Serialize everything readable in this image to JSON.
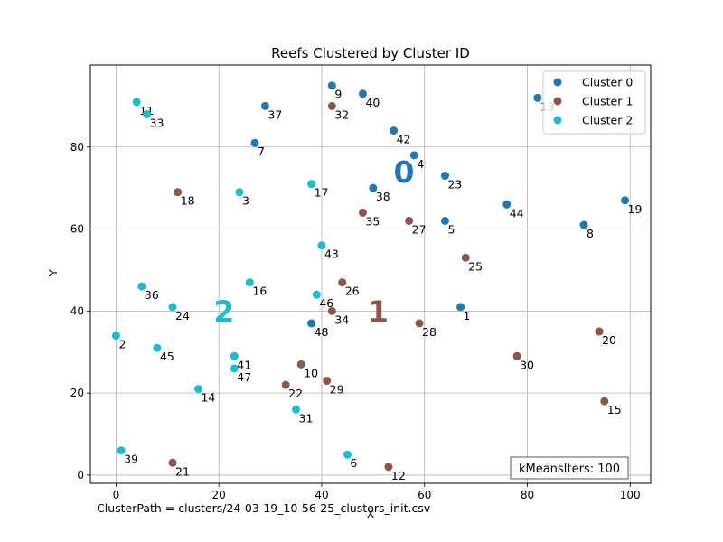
{
  "chart_data": {
    "type": "scatter",
    "title": "Reefs Clustered by Cluster ID",
    "xlabel": "X",
    "ylabel": "Y",
    "xlim": [
      -5,
      104
    ],
    "ylim": [
      -2,
      100
    ],
    "xticks": [
      0,
      20,
      40,
      60,
      80,
      100
    ],
    "yticks": [
      0,
      20,
      40,
      60,
      80
    ],
    "grid": true,
    "legend_position": "top-right",
    "series": [
      {
        "name": "Cluster 0",
        "color": "#1f77b4",
        "centroid_label": "0",
        "centroid": [
          56,
          74
        ],
        "points": [
          {
            "id": "9",
            "x": 42,
            "y": 95
          },
          {
            "id": "40",
            "x": 48,
            "y": 93
          },
          {
            "id": "37",
            "x": 29,
            "y": 90
          },
          {
            "id": "42",
            "x": 54,
            "y": 84
          },
          {
            "id": "7",
            "x": 27,
            "y": 81
          },
          {
            "id": "4",
            "x": 58,
            "y": 78
          },
          {
            "id": "23",
            "x": 64,
            "y": 73
          },
          {
            "id": "38",
            "x": 50,
            "y": 70
          },
          {
            "id": "44",
            "x": 76,
            "y": 66
          },
          {
            "id": "19",
            "x": 99,
            "y": 67
          },
          {
            "id": "5",
            "x": 64,
            "y": 62
          },
          {
            "id": "8",
            "x": 91,
            "y": 61
          },
          {
            "id": "13",
            "x": 82,
            "y": 92
          },
          {
            "id": "1",
            "x": 67,
            "y": 41
          },
          {
            "id": "48",
            "x": 38,
            "y": 37
          }
        ]
      },
      {
        "name": "Cluster 1",
        "color": "#8c564b",
        "centroid_label": "1",
        "centroid": [
          51,
          40
        ],
        "points": [
          {
            "id": "32",
            "x": 42,
            "y": 90
          },
          {
            "id": "18",
            "x": 12,
            "y": 69
          },
          {
            "id": "35",
            "x": 48,
            "y": 64
          },
          {
            "id": "27",
            "x": 57,
            "y": 62
          },
          {
            "id": "25",
            "x": 68,
            "y": 53
          },
          {
            "id": "26",
            "x": 44,
            "y": 47
          },
          {
            "id": "34",
            "x": 42,
            "y": 40
          },
          {
            "id": "28",
            "x": 59,
            "y": 37
          },
          {
            "id": "20",
            "x": 94,
            "y": 35
          },
          {
            "id": "30",
            "x": 78,
            "y": 29
          },
          {
            "id": "10",
            "x": 36,
            "y": 27
          },
          {
            "id": "29",
            "x": 41,
            "y": 23
          },
          {
            "id": "22",
            "x": 33,
            "y": 22
          },
          {
            "id": "15",
            "x": 95,
            "y": 18
          },
          {
            "id": "21",
            "x": 11,
            "y": 3
          },
          {
            "id": "12",
            "x": 53,
            "y": 2
          }
        ]
      },
      {
        "name": "Cluster 2",
        "color": "#17becf",
        "centroid_label": "2",
        "centroid": [
          21,
          40
        ],
        "points": [
          {
            "id": "11",
            "x": 4,
            "y": 91
          },
          {
            "id": "33",
            "x": 6,
            "y": 88
          },
          {
            "id": "3",
            "x": 24,
            "y": 69
          },
          {
            "id": "17",
            "x": 38,
            "y": 71
          },
          {
            "id": "43",
            "x": 40,
            "y": 56
          },
          {
            "id": "36",
            "x": 5,
            "y": 46
          },
          {
            "id": "16",
            "x": 26,
            "y": 47
          },
          {
            "id": "46",
            "x": 39,
            "y": 44
          },
          {
            "id": "24",
            "x": 11,
            "y": 41
          },
          {
            "id": "2",
            "x": 0,
            "y": 34
          },
          {
            "id": "45",
            "x": 8,
            "y": 31
          },
          {
            "id": "41",
            "x": 23,
            "y": 29
          },
          {
            "id": "47",
            "x": 23,
            "y": 26
          },
          {
            "id": "14",
            "x": 16,
            "y": 21
          },
          {
            "id": "31",
            "x": 35,
            "y": 16
          },
          {
            "id": "39",
            "x": 1,
            "y": 6
          },
          {
            "id": "6",
            "x": 45,
            "y": 5
          }
        ]
      }
    ],
    "annotation_box": "kMeansIters: 100"
  },
  "footer_text": "ClusterPath = clusters/24-03-19_10-56-25_clusters_init.csv"
}
